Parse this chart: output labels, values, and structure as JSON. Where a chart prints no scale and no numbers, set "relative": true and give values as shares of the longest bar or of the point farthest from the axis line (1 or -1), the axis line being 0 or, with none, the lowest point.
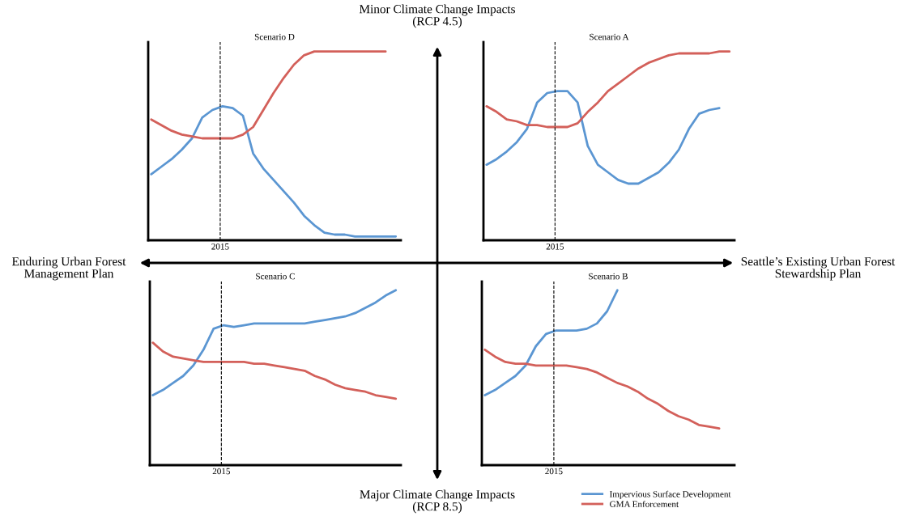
{
  "chart_data": [
    {
      "type": "line",
      "title": "Scenario D",
      "relative": true,
      "categories": [
        null,
        null,
        null,
        null,
        null,
        null,
        null,
        null,
        null,
        null,
        null,
        null,
        null,
        null,
        null,
        null,
        null,
        null,
        null,
        null,
        null,
        null,
        null,
        null,
        null
      ],
      "annotations": [
        "2015",
        "Minor Climate Change Impacts\n(RCP 4.5)",
        "Major Climate Change Impacts\n(RCP 8.5)",
        "Enduring Urban Forest\nManagement Plan",
        "Seattle’s Existing Urban Forest\nStewardship Plan"
      ],
      "series": [
        {
          "color": "#5b96d2",
          "values": [
            0.35,
            0.39,
            0.43,
            0.48,
            0.54,
            0.65,
            0.69,
            0.71,
            0.7,
            0.66,
            0.46,
            0.38,
            0.32,
            0.26,
            0.2,
            0.13,
            0.08,
            0.04,
            0.03,
            0.03,
            0.02,
            0.02,
            0.02,
            0.02,
            0.02
          ]
        },
        {
          "color": "#d3605a",
          "values": [
            0.64,
            0.61,
            0.58,
            0.56,
            0.55,
            0.54,
            0.54,
            0.54,
            0.54,
            0.56,
            0.6,
            0.69,
            0.78,
            0.86,
            0.93,
            0.98,
            1.0,
            1.0,
            1.0,
            1.0,
            1.0,
            1.0,
            1.0,
            1.0,
            null
          ]
        }
      ]
    },
    {
      "type": "line",
      "title": "Scenario A",
      "relative": true,
      "categories": [
        null,
        null,
        null,
        null,
        null,
        null,
        null,
        null,
        null,
        null,
        null,
        null,
        null,
        null,
        null,
        null,
        null,
        null,
        null,
        null,
        null,
        null,
        null,
        null,
        null
      ],
      "annotations": [
        "2015"
      ],
      "series": [
        {
          "color": "#5b96d2",
          "values": [
            0.4,
            0.43,
            0.47,
            0.52,
            0.59,
            0.73,
            0.78,
            0.79,
            0.79,
            0.73,
            0.5,
            0.4,
            0.36,
            0.32,
            0.3,
            0.3,
            0.33,
            0.36,
            0.41,
            0.48,
            0.59,
            0.67,
            0.69,
            0.7,
            null
          ]
        },
        {
          "color": "#d3605a",
          "values": [
            0.71,
            0.68,
            0.64,
            0.63,
            0.61,
            0.61,
            0.6,
            0.6,
            0.6,
            0.62,
            0.68,
            0.73,
            0.79,
            0.83,
            0.87,
            0.91,
            0.94,
            0.96,
            0.98,
            0.99,
            0.99,
            0.99,
            0.99,
            1.0,
            1.0
          ]
        }
      ]
    },
    {
      "type": "line",
      "title": "Scenario C",
      "relative": true,
      "categories": [
        null,
        null,
        null,
        null,
        null,
        null,
        null,
        null,
        null,
        null,
        null,
        null,
        null,
        null,
        null,
        null,
        null,
        null,
        null,
        null,
        null,
        null,
        null,
        null,
        null
      ],
      "annotations": [
        "2015"
      ],
      "series": [
        {
          "color": "#5b96d2",
          "values": [
            0.4,
            0.43,
            0.47,
            0.51,
            0.57,
            0.66,
            0.78,
            0.8,
            0.79,
            0.8,
            0.81,
            0.81,
            0.81,
            0.81,
            0.81,
            0.81,
            0.82,
            0.83,
            0.84,
            0.85,
            0.87,
            0.9,
            0.93,
            0.97,
            1.0
          ]
        },
        {
          "color": "#d3605a",
          "values": [
            0.7,
            0.65,
            0.62,
            0.61,
            0.6,
            0.59,
            0.59,
            0.59,
            0.59,
            0.59,
            0.58,
            0.58,
            0.57,
            0.56,
            0.55,
            0.54,
            0.51,
            0.49,
            0.46,
            0.44,
            0.43,
            0.42,
            0.4,
            0.39,
            0.38
          ]
        }
      ]
    },
    {
      "type": "line",
      "title": "Scenario B",
      "relative": true,
      "legend": "bottom right",
      "categories": [
        null,
        null,
        null,
        null,
        null,
        null,
        null,
        null,
        null,
        null,
        null,
        null,
        null,
        null,
        null,
        null,
        null,
        null,
        null,
        null,
        null,
        null,
        null,
        null,
        null
      ],
      "annotations": [
        "2015"
      ],
      "series": [
        {
          "name": "Impervious Surface Development",
          "color": "#5b96d2",
          "values": [
            0.4,
            0.43,
            0.47,
            0.51,
            0.57,
            0.68,
            0.75,
            0.77,
            0.77,
            0.77,
            0.78,
            0.81,
            0.88,
            1.0,
            null,
            null,
            null,
            null,
            null,
            null,
            null,
            null,
            null,
            null,
            null
          ]
        },
        {
          "name": "GMA Enforcement",
          "color": "#d3605a",
          "values": [
            0.66,
            0.62,
            0.59,
            0.58,
            0.58,
            0.57,
            0.57,
            0.57,
            0.57,
            0.56,
            0.55,
            0.53,
            0.5,
            0.47,
            0.45,
            0.42,
            0.38,
            0.35,
            0.31,
            0.28,
            0.26,
            0.23,
            0.22,
            0.21,
            null
          ]
        }
      ]
    }
  ]
}
